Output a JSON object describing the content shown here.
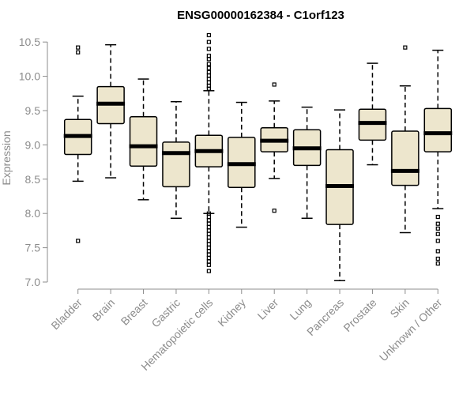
{
  "colors": {
    "box_fill": "#ede6cd",
    "box_stroke": "#000000",
    "median": "#000000",
    "axis": "#8c8c8c",
    "outlier": "#000000"
  },
  "chart_data": {
    "type": "boxplot",
    "title": "ENSG00000162384 - C1orf123",
    "xlabel": "",
    "ylabel": "Expression",
    "ylim": [
      7.0,
      10.6
    ],
    "yticks": [
      7.0,
      7.5,
      8.0,
      8.5,
      9.0,
      9.5,
      10.0,
      10.5
    ],
    "ytick_labels": [
      "7.0",
      "7.5",
      "8.0",
      "8.5",
      "9.0",
      "9.5",
      "10.0",
      "10.5"
    ],
    "grid": false,
    "categories": [
      "Bladder",
      "Brain",
      "Breast",
      "Gastric",
      "Hematopoietic cells",
      "Kidney",
      "Liver",
      "Lung",
      "Pancreas",
      "Prostate",
      "Skin",
      "Unknown / Other"
    ],
    "boxes": [
      {
        "category": "Bladder",
        "whisker_low": 8.47,
        "q1": 8.86,
        "median": 9.13,
        "q3": 9.37,
        "whisker_high": 9.71,
        "outliers": [
          7.6,
          10.35,
          10.42
        ]
      },
      {
        "category": "Brain",
        "whisker_low": 8.52,
        "q1": 9.31,
        "median": 9.6,
        "q3": 9.85,
        "whisker_high": 10.46,
        "outliers": []
      },
      {
        "category": "Breast",
        "whisker_low": 8.2,
        "q1": 8.69,
        "median": 8.98,
        "q3": 9.41,
        "whisker_high": 9.96,
        "outliers": []
      },
      {
        "category": "Gastric",
        "whisker_low": 7.93,
        "q1": 8.39,
        "median": 8.88,
        "q3": 9.04,
        "whisker_high": 9.63,
        "outliers": []
      },
      {
        "category": "Hematopoietic cells",
        "whisker_low": 8.0,
        "q1": 8.68,
        "median": 8.91,
        "q3": 9.14,
        "whisker_high": 9.79,
        "outliers": [
          10.6,
          10.5,
          10.4,
          10.3,
          10.25,
          10.18,
          10.12,
          10.06,
          10.01,
          9.96,
          9.91,
          9.86,
          9.82,
          8.0,
          7.95,
          7.9,
          7.85,
          7.8,
          7.75,
          7.7,
          7.65,
          7.6,
          7.55,
          7.5,
          7.45,
          7.4,
          7.35,
          7.3,
          7.25,
          7.16
        ]
      },
      {
        "category": "Kidney",
        "whisker_low": 7.8,
        "q1": 8.38,
        "median": 8.72,
        "q3": 9.11,
        "whisker_high": 9.62,
        "outliers": []
      },
      {
        "category": "Liver",
        "whisker_low": 8.51,
        "q1": 8.9,
        "median": 9.06,
        "q3": 9.25,
        "whisker_high": 9.64,
        "outliers": [
          8.04,
          9.88
        ]
      },
      {
        "category": "Lung",
        "whisker_low": 7.93,
        "q1": 8.7,
        "median": 8.95,
        "q3": 9.22,
        "whisker_high": 9.55,
        "outliers": []
      },
      {
        "category": "Pancreas",
        "whisker_low": 7.02,
        "q1": 7.84,
        "median": 8.4,
        "q3": 8.93,
        "whisker_high": 9.51,
        "outliers": []
      },
      {
        "category": "Prostate",
        "whisker_low": 8.71,
        "q1": 9.07,
        "median": 9.32,
        "q3": 9.52,
        "whisker_high": 10.19,
        "outliers": []
      },
      {
        "category": "Skin",
        "whisker_low": 7.72,
        "q1": 8.41,
        "median": 8.62,
        "q3": 9.2,
        "whisker_high": 9.86,
        "outliers": [
          10.42
        ]
      },
      {
        "category": "Unknown / Other",
        "whisker_low": 8.07,
        "q1": 8.9,
        "median": 9.17,
        "q3": 9.53,
        "whisker_high": 10.38,
        "outliers": [
          7.95,
          7.85,
          7.78,
          7.7,
          7.6,
          7.45,
          7.34,
          7.27
        ]
      }
    ]
  }
}
